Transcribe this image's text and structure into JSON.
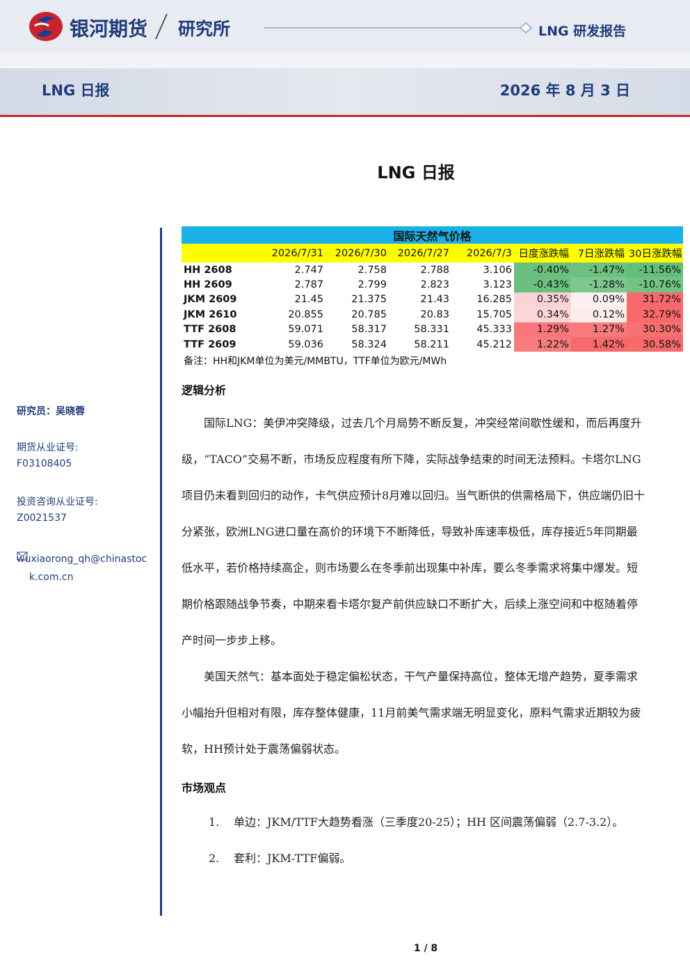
{
  "header": {
    "brand": "银河期货",
    "division": "研究所",
    "report_series": "LNG 研发报告",
    "report_name": "LNG 日报",
    "date": "2026 年 8 月 3 日"
  },
  "title": "LNG 日报",
  "sidebar": {
    "analyst": "研究员：吴晓蓉",
    "futures_cert_label": "期货从业证号:",
    "futures_cert": "F03108405",
    "invest_cert_label": "投资咨询从业证号:",
    "invest_cert": "Z0021537",
    "email": "wuxiaorong_qh@chinastock.com.cn"
  },
  "table": {
    "title": "国际天然气价格",
    "columns": [
      "2026/7/31",
      "2026/7/30",
      "2026/7/27",
      "2026/7/3",
      "日度涨跌幅",
      "7日涨跌幅",
      "30日涨跌幅"
    ],
    "rows": [
      {
        "name": "HH 2608",
        "cells": [
          "2.747",
          "2.758",
          "2.788",
          "3.106",
          "-0.40%",
          "-1.47%",
          "-11.56%"
        ],
        "colors": [
          "#6abf7e",
          "#6dc080",
          "#63be7b"
        ]
      },
      {
        "name": "HH 2609",
        "cells": [
          "2.787",
          "2.799",
          "2.823",
          "3.123",
          "-0.43%",
          "-1.28%",
          "-10.76%"
        ],
        "colors": [
          "#6cc07f",
          "#7ec78f",
          "#72c283"
        ]
      },
      {
        "name": "JKM 2609",
        "cells": [
          "21.45",
          "21.375",
          "21.43",
          "16.285",
          "0.35%",
          "0.09%",
          "31.72%"
        ],
        "colors": [
          "#fad4d5",
          "#fdf0f0",
          "#f8696b"
        ]
      },
      {
        "name": "JKM 2610",
        "cells": [
          "20.855",
          "20.785",
          "20.83",
          "15.705",
          "0.34%",
          "0.12%",
          "32.79%"
        ],
        "colors": [
          "#fad6d7",
          "#fcecec",
          "#f8696b"
        ]
      },
      {
        "name": "TTF 2608",
        "cells": [
          "59.071",
          "58.317",
          "58.331",
          "45.333",
          "1.29%",
          "1.27%",
          "30.30%"
        ],
        "colors": [
          "#f8777a",
          "#f87a7c",
          "#f8706f"
        ]
      },
      {
        "name": "TTF 2609",
        "cells": [
          "59.036",
          "58.324",
          "58.211",
          "45.212",
          "1.22%",
          "1.42%",
          "30.58%"
        ],
        "colors": [
          "#f87b7d",
          "#f8696b",
          "#f8696b"
        ]
      }
    ],
    "note": "备注：HH和JKM单位为美元/MMBTU，TTF单位为欧元/MWh"
  },
  "analysis": {
    "heading": "逻辑分析",
    "paragraphs": [
      "国际LNG：美伊冲突降级，过去几个月局势不断反复，冲突经常间歇性缓和，而后再度升级，“TACO”交易不断，市场反应程度有所下降，实际战争结束的时间无法预料。卡塔尔LNG项目仍未看到回归的动作，卡气供应预计8月难以回归。当气断供的供需格局下，供应端仍旧十分紧张，欧洲LNG进口量在高价的环境下不断降低，导致补库速率极低，库存接近5年同期最低水平，若价格持续高企，则市场要么在冬季前出现集中补库，要么冬季需求将集中爆发。短期价格跟随战争节奏，中期来看卡塔尔复产前供应缺口不断扩大，后续上涨空间和中枢随着停产时间一步步上移。",
      "美国天然气：基本面处于稳定偏松状态，干气产量保持高位，整体无增产趋势，夏季需求小幅抬升但相对有限，库存整体健康，11月前美气需求端无明显变化，原料气需求近期较为疲软，HH预计处于震荡偏弱状态。"
    ]
  },
  "views": {
    "heading": "市场观点",
    "items": [
      {
        "num": "1.",
        "text": "单边：JKM/TTF大趋势看涨（三季度20-25）；HH 区间震荡偏弱（2.7-3.2）。"
      },
      {
        "num": "2.",
        "text": "套利：JKM-TTF偏弱。"
      }
    ]
  },
  "footer": {
    "page": "1 / 8"
  }
}
